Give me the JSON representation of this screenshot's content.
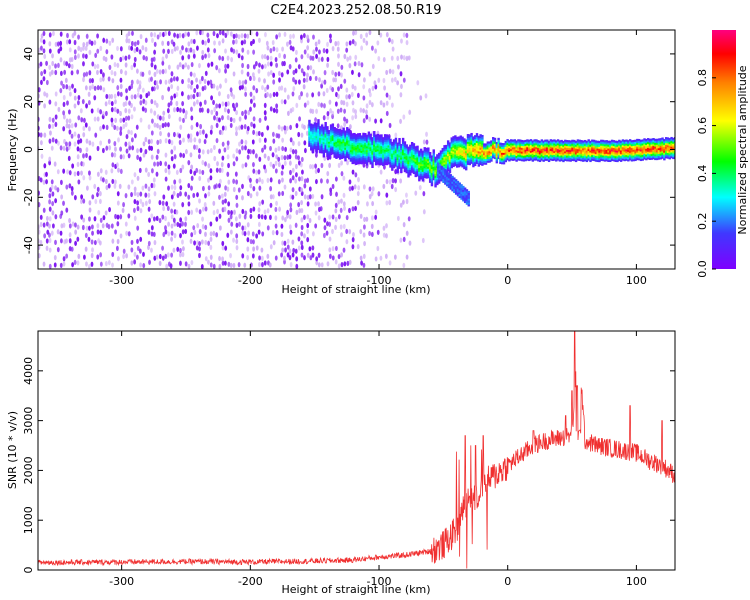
{
  "title": "C2E4.2023.252.08.50.R19",
  "chart_data": [
    {
      "type": "heatmap",
      "title": "C2E4.2023.252.08.50.R19",
      "xlabel": "Height of straight line (km)",
      "ylabel": "Frequency (Hz)",
      "xlim": [
        -365,
        130
      ],
      "ylim": [
        -50,
        50
      ],
      "x_ticks": [
        -300,
        -200,
        -100,
        0,
        100
      ],
      "y_ticks": [
        -40,
        -20,
        0,
        20,
        40
      ],
      "colorbar": {
        "label": "Normalized spectral amplitude",
        "range": [
          0.0,
          1.0
        ],
        "ticks": [
          "0.0",
          "0.2",
          "0.4",
          "0.6",
          "0.8"
        ],
        "colors": [
          "#7f00ff",
          "#3f38ff",
          "#00ffff",
          "#00ff00",
          "#ffff00",
          "#ff8000",
          "#ff0000",
          "#ff007f"
        ]
      },
      "ridge": {
        "description_points_x": [
          -150,
          -130,
          -110,
          -90,
          -70,
          -55,
          -45,
          -30,
          -20,
          0,
          30,
          60,
          90,
          130
        ],
        "frequency_center": [
          6,
          3,
          1,
          -1,
          -5,
          -8,
          -2,
          0,
          0,
          0,
          0,
          0,
          0,
          1
        ],
        "peak_amplitude": [
          0.35,
          0.45,
          0.45,
          0.4,
          0.5,
          0.55,
          0.6,
          0.7,
          0.8,
          0.85,
          0.9,
          0.85,
          0.9,
          0.85
        ]
      }
    },
    {
      "type": "line",
      "xlabel": "Height of straight line (km)",
      "ylabel": "SNR (10 * v/v)",
      "xlim": [
        -365,
        130
      ],
      "ylim": [
        0,
        4800
      ],
      "x_ticks": [
        -300,
        -200,
        -100,
        0,
        100
      ],
      "y_ticks": [
        0,
        1000,
        2000,
        3000,
        4000
      ],
      "line_color": "#f03030",
      "x": [
        -365,
        -300,
        -250,
        -200,
        -150,
        -120,
        -100,
        -80,
        -60,
        -50,
        -40,
        -35,
        -30,
        -25,
        -20,
        -10,
        0,
        10,
        20,
        30,
        40,
        50,
        55,
        60,
        70,
        80,
        90,
        100,
        110,
        120,
        130
      ],
      "values": [
        150,
        160,
        170,
        160,
        180,
        200,
        260,
        300,
        380,
        500,
        800,
        1200,
        1500,
        1400,
        1700,
        1900,
        2100,
        2300,
        2500,
        2600,
        2650,
        2700,
        4700,
        2600,
        2500,
        2450,
        2400,
        2350,
        2200,
        2100,
        1900
      ],
      "spikes": [
        [
          -33,
          2700
        ],
        [
          -25,
          2500
        ],
        [
          -19,
          2700
        ],
        [
          20,
          2800
        ],
        [
          45,
          3100
        ],
        [
          50,
          3600
        ],
        [
          52,
          4800
        ],
        [
          54,
          3700
        ],
        [
          95,
          3300
        ],
        [
          120,
          3000
        ]
      ]
    }
  ]
}
